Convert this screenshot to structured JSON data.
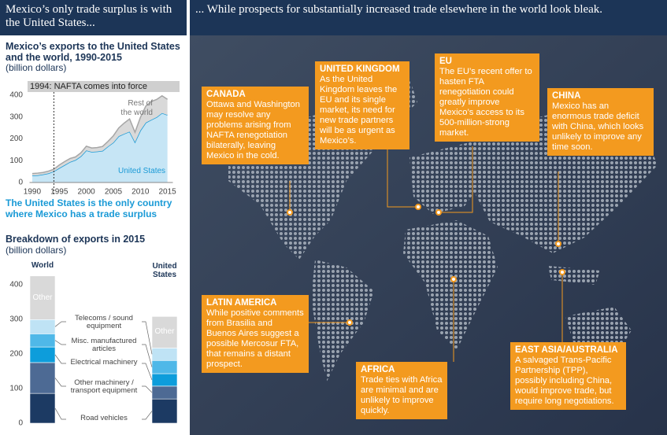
{
  "left_header": "Mexico’s only trade surplus is with the United States...",
  "right_header": "... While prospects for substantially increased trade elsewhere in the world look bleak.",
  "chart_data": [
    {
      "type": "area",
      "title": "Mexico’s exports to the United States and the world, 1990-2015",
      "subtitle": "(billion dollars)",
      "annotation": "1994: NAFTA comes into force",
      "annotation_x": 1994,
      "note": "The United States is the only country where Mexico has a trade surplus",
      "x": [
        1990,
        1991,
        1992,
        1993,
        1994,
        1995,
        1996,
        1997,
        1998,
        1999,
        2000,
        2001,
        2002,
        2003,
        2004,
        2005,
        2006,
        2007,
        2008,
        2009,
        2010,
        2011,
        2012,
        2013,
        2014,
        2015
      ],
      "xlim": [
        1989.5,
        2016
      ],
      "xticks": [
        1990,
        1995,
        2000,
        2005,
        2010,
        2015
      ],
      "ylim": [
        0,
        420
      ],
      "yticks": [
        0,
        100,
        200,
        300,
        400
      ],
      "grid": false,
      "stacked": true,
      "series": [
        {
          "name": "United States",
          "color": "#1a9ad6",
          "fill": "#c6e5f5",
          "values": [
            32,
            33,
            37,
            42,
            51,
            66,
            80,
            94,
            103,
            120,
            147,
            140,
            142,
            145,
            165,
            183,
            212,
            223,
            233,
            185,
            238,
            274,
            287,
            299,
            318,
            309
          ]
        },
        {
          "name": "Rest of the world",
          "color": "#a6a6a6",
          "fill": "#d9d9d9",
          "values": [
            9,
            10,
            9,
            10,
            10,
            14,
            16,
            16,
            14,
            16,
            19,
            18,
            18,
            20,
            23,
            31,
            38,
            49,
            58,
            45,
            60,
            76,
            84,
            81,
            79,
            72
          ]
        }
      ]
    },
    {
      "type": "stacked-bar",
      "title": "Breakdown of exports in 2015",
      "subtitle": "(billion dollars)",
      "categories": [
        "World",
        "United States"
      ],
      "ylim": [
        0,
        420
      ],
      "yticks": [
        0,
        100,
        200,
        300,
        400
      ],
      "series": [
        {
          "name": "Road vehicles",
          "color": "#1c3a63",
          "values": [
            86,
            70
          ]
        },
        {
          "name": "Other machinery / transport equipment",
          "color": "#4d6a94",
          "values": [
            89,
            37
          ]
        },
        {
          "name": "Electrical machinery",
          "color": "#0d9ddb",
          "values": [
            45,
            36
          ]
        },
        {
          "name": "Misc. manufactured articles",
          "color": "#4fb8e8",
          "values": [
            38,
            38
          ]
        },
        {
          "name": "Telecoms / sound equipment",
          "color": "#bfe3f5",
          "values": [
            41,
            36
          ]
        },
        {
          "name": "Other",
          "color": "#d9d9d9",
          "values": [
            126,
            91
          ]
        }
      ]
    }
  ],
  "regions": [
    {
      "title": "CANADA",
      "text": "Ottawa and Washington may resolve any problems arising from NAFTA renegotiation bilaterally, leaving Mexico in the cold."
    },
    {
      "title": "UNITED KINGDOM",
      "text": "As the United Kingdom leaves the EU and its single market, its need for new trade partners will be as urgent as Mexico’s."
    },
    {
      "title": "EU",
      "text": "The EU’s recent offer to hasten FTA renegotiation could greatly improve Mexico’s access to its 500-million-strong market."
    },
    {
      "title": "CHINA",
      "text": "Mexico has an enormous trade deficit with China, which looks unlikely to improve any time soon."
    },
    {
      "title": "LATIN AMERICA",
      "text": "While positive comments from Brasilia and Buenos Aires suggest a possible Mercosur FTA, that remains a distant prospect."
    },
    {
      "title": "AFRICA",
      "text": "Trade ties with Africa are minimal and are unlikely to improve quickly."
    },
    {
      "title": "EAST ASIA/AUSTRALIA",
      "text": "A salvaged Trans-Pacific Partnership (TPP), possibly including China, would improve trade, but require long negotiations."
    }
  ]
}
